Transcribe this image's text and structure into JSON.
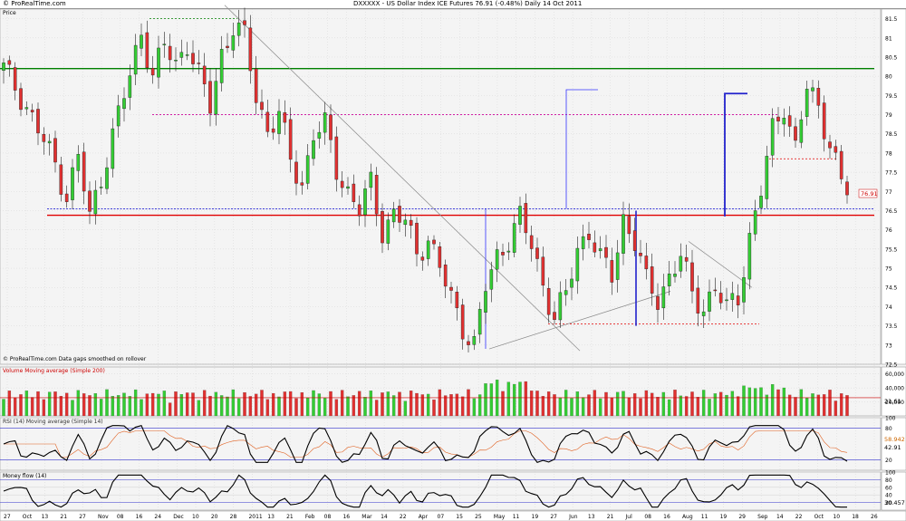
{
  "header": {
    "site": "© ProRealTime.com",
    "instrument": "DXXXXX - US Dollar Index ICE Futures   76.91 (-0.48%)   Daily  14 Oct 2011"
  },
  "panels": {
    "price": {
      "label": "Price",
      "footer": "© ProRealTime.com  Data gaps smoothed on rollover",
      "last_value": "76.91",
      "y_ticks": [
        "81.5",
        "81",
        "80.5",
        "80",
        "79.5",
        "79",
        "78.5",
        "78",
        "77.5",
        "77",
        "76.5",
        "76",
        "75.5",
        "75",
        "74.5",
        "74",
        "73.5",
        "73",
        "72.5"
      ]
    },
    "volume": {
      "label": "Volume  Moving average (Simple 200)",
      "y_ticks": [
        "60,000",
        "40,000",
        "20,000"
      ],
      "current": "21,61"
    },
    "rsi": {
      "label": "RSI (14)  Moving average (Simple 14)",
      "y_ticks": [
        "100",
        "80",
        "20"
      ],
      "ma_value": "58.942",
      "value": "42.91"
    },
    "mfi": {
      "label": "Money flow (14)",
      "y_ticks": [
        "100",
        "80",
        "60",
        "40",
        "20"
      ],
      "value": "30.457"
    }
  },
  "x_axis": {
    "ticks": [
      "27",
      "Oct",
      "13",
      "21",
      "27",
      "Nov",
      "08",
      "16",
      "24",
      "Dec",
      "10",
      "20",
      "28",
      "2011",
      "13",
      "21",
      "Feb",
      "08",
      "16",
      "Mar",
      "14",
      "22",
      "Apr",
      "07",
      "15",
      "25",
      "May",
      "11",
      "19",
      "27",
      "Jun",
      "13",
      "21",
      "Jul",
      "08",
      "16",
      "Aug",
      "11",
      "19",
      "29",
      "Sep",
      "14",
      "22",
      "Oct",
      "10",
      "18",
      "26"
    ]
  },
  "chart_data": {
    "type": "candlestick",
    "title": "DXXXXX - US Dollar Index ICE Futures",
    "period": "Daily",
    "date": "14 Oct 2011",
    "last": 76.91,
    "change_pct": -0.48,
    "ylim": [
      72.5,
      81.75
    ],
    "close_path": [
      [
        0,
        80.2
      ],
      [
        3,
        79.5
      ],
      [
        6,
        78.6
      ],
      [
        9,
        77.7
      ],
      [
        11,
        76.9
      ],
      [
        13,
        77.9
      ],
      [
        15,
        76.3
      ],
      [
        17,
        77.4
      ],
      [
        20,
        79.0
      ],
      [
        22,
        80.0
      ],
      [
        24,
        81.2
      ],
      [
        26,
        80.0
      ],
      [
        28,
        80.8
      ],
      [
        30,
        80.3
      ],
      [
        32,
        80.9
      ],
      [
        34,
        80.0
      ],
      [
        36,
        79.2
      ],
      [
        38,
        80.6
      ],
      [
        40,
        81.3
      ],
      [
        42,
        81.0
      ],
      [
        44,
        79.5
      ],
      [
        46,
        78.6
      ],
      [
        48,
        79.0
      ],
      [
        50,
        77.8
      ],
      [
        52,
        77.2
      ],
      [
        54,
        78.5
      ],
      [
        56,
        78.7
      ],
      [
        58,
        77.6
      ],
      [
        60,
        77.0
      ],
      [
        62,
        76.5
      ],
      [
        64,
        77.2
      ],
      [
        66,
        76.0
      ],
      [
        68,
        76.4
      ],
      [
        70,
        76.2
      ],
      [
        72,
        75.4
      ],
      [
        74,
        75.8
      ],
      [
        76,
        75.0
      ],
      [
        78,
        74.2
      ],
      [
        80,
        73.5
      ],
      [
        82,
        73.0
      ],
      [
        84,
        74.5
      ],
      [
        86,
        75.3
      ],
      [
        88,
        75.8
      ],
      [
        90,
        76.3
      ],
      [
        92,
        75.6
      ],
      [
        94,
        74.6
      ],
      [
        96,
        73.7
      ],
      [
        98,
        74.3
      ],
      [
        100,
        75.5
      ],
      [
        102,
        76.0
      ],
      [
        104,
        75.2
      ],
      [
        106,
        74.8
      ],
      [
        108,
        76.3
      ],
      [
        110,
        75.7
      ],
      [
        112,
        74.6
      ],
      [
        114,
        74.2
      ],
      [
        116,
        74.8
      ],
      [
        118,
        75.3
      ],
      [
        120,
        74.3
      ],
      [
        122,
        74.0
      ],
      [
        124,
        74.5
      ],
      [
        126,
        73.9
      ],
      [
        128,
        74.3
      ],
      [
        130,
        75.8
      ],
      [
        132,
        77.0
      ],
      [
        134,
        78.6
      ],
      [
        136,
        79.3
      ],
      [
        138,
        78.1
      ],
      [
        140,
        79.7
      ],
      [
        142,
        79.2
      ],
      [
        144,
        78.3
      ],
      [
        146,
        77.2
      ],
      [
        147,
        76.91
      ]
    ],
    "levels": [
      {
        "value": 80.2,
        "color": "#008000",
        "style": "solid"
      },
      {
        "value": 76.38,
        "color": "#e00000",
        "style": "solid"
      },
      {
        "value": 76.55,
        "color": "#0000cc",
        "style": "dotted"
      },
      {
        "value": 79.0,
        "color": "#cc0099",
        "style": "dashed"
      },
      {
        "value": 73.55,
        "color": "#e00000",
        "style": "dashed"
      },
      {
        "value": 81.5,
        "color": "#008000",
        "style": "dashed"
      },
      {
        "value": 77.85,
        "color": "#e00000",
        "style": "dashed"
      }
    ]
  },
  "style": {
    "bull": "#33cc33",
    "bear": "#e03030",
    "grid": "#cfcfcf",
    "panel_bg": "#f4f4f4",
    "axis_bg": "#ffffff"
  }
}
